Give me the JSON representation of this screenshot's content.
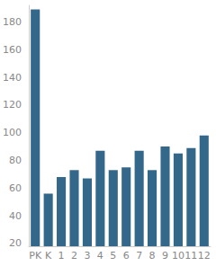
{
  "chart_data": {
    "type": "bar",
    "categories": [
      "PK",
      "K",
      "1",
      "2",
      "3",
      "4",
      "5",
      "6",
      "7",
      "8",
      "9",
      "10",
      "11",
      "12"
    ],
    "values": [
      189,
      56,
      68,
      73,
      67,
      87,
      73,
      75,
      87,
      73,
      90,
      85,
      89,
      98
    ],
    "color": "#34688a",
    "ylim": [
      18,
      192
    ],
    "yticks": [
      20,
      40,
      60,
      80,
      100,
      120,
      140,
      160,
      180
    ],
    "grid": false
  }
}
